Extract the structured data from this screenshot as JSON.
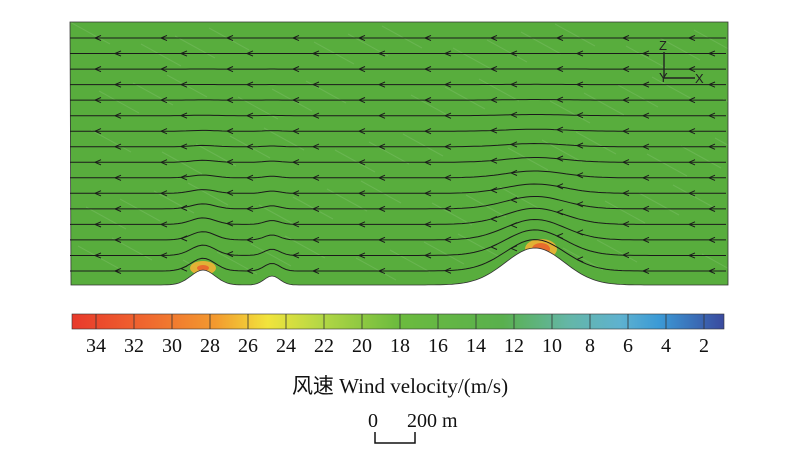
{
  "legend": {
    "ticks": [
      "34",
      "32",
      "30",
      "28",
      "26",
      "24",
      "22",
      "20",
      "18",
      "16",
      "14",
      "12",
      "10",
      "8",
      "6",
      "4",
      "2"
    ],
    "title": "风速 Wind velocity/(m/s)",
    "colors": {
      "high": "#e8392b",
      "orange": "#f4922b",
      "yellow": "#f1e43c",
      "green": "#5ab13d",
      "teal": "#64b6a6",
      "blue": "#3b9ad6",
      "low": "#3a4a9e"
    }
  },
  "scale_bar": {
    "zero": "0",
    "value": "200 m"
  },
  "axes": {
    "z": "Z",
    "y": "Y",
    "x": "X"
  },
  "flow_direction": "right-to-left"
}
